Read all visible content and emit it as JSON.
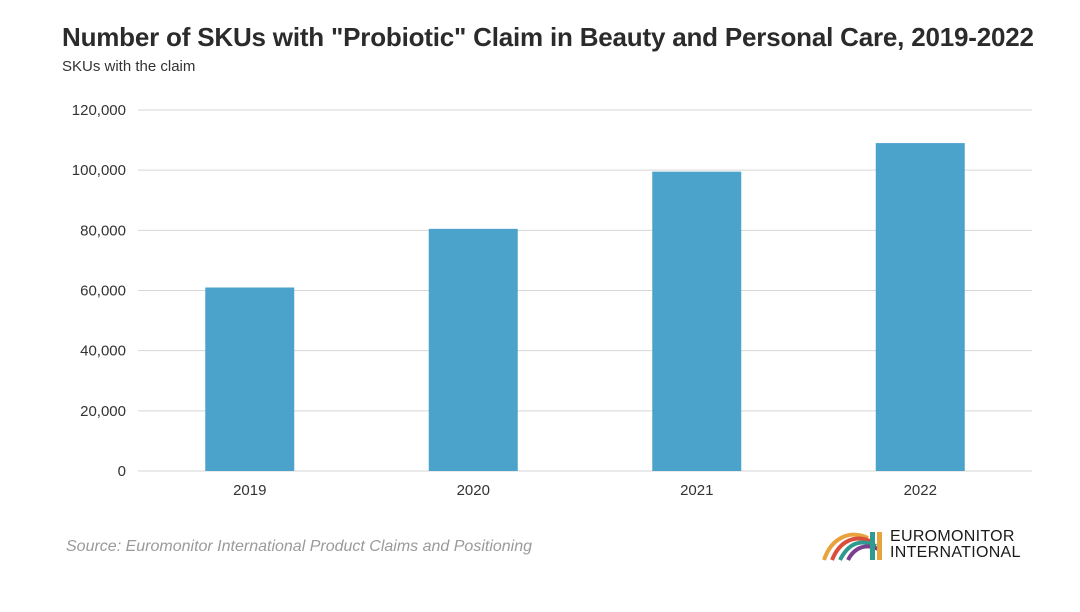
{
  "chart_data": {
    "type": "bar",
    "title": "Number of SKUs with \"Probiotic\" Claim in Beauty and Personal Care, 2019-2022",
    "subtitle": "SKUs with the claim",
    "categories": [
      "2019",
      "2020",
      "2021",
      "2022"
    ],
    "values": [
      61000,
      80500,
      99500,
      109000
    ],
    "ylim": [
      0,
      120000
    ],
    "yticks": [
      "0",
      "20,000",
      "40,000",
      "60,000",
      "80,000",
      "100,000",
      "120,000"
    ],
    "ytick_values": [
      0,
      20000,
      40000,
      60000,
      80000,
      100000,
      120000
    ],
    "xlabel": "",
    "ylabel": "",
    "grid": true,
    "bar_color": "#4ba3cc",
    "grid_color": "#d6d6d6"
  },
  "source": "Source: Euromonitor International Product Claims and Positioning",
  "logo": {
    "line1": "EUROMONITOR",
    "line2": "INTERNATIONAL",
    "colors": [
      "#e8a33d",
      "#d94f3a",
      "#2f9a8f",
      "#7a3f8f"
    ]
  }
}
